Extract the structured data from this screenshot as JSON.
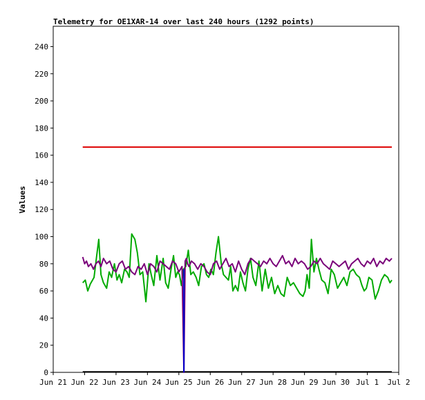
{
  "chart_data": {
    "type": "line",
    "title": "Telemetry for OE1XAR-14 over last 240 hours (1292 points)",
    "xlabel": "",
    "ylabel": "Values",
    "ylim": [
      0,
      255
    ],
    "xlim": [
      0,
      11
    ],
    "yticks": [
      0,
      20,
      40,
      60,
      80,
      100,
      120,
      140,
      160,
      180,
      200,
      220,
      240
    ],
    "xticks": [
      {
        "pos": 0,
        "label": "Jun 21"
      },
      {
        "pos": 1,
        "label": "Jun 22"
      },
      {
        "pos": 2,
        "label": "Jun 23"
      },
      {
        "pos": 3,
        "label": "Jun 24"
      },
      {
        "pos": 4,
        "label": "Jun 25"
      },
      {
        "pos": 5,
        "label": "Jun 26"
      },
      {
        "pos": 6,
        "label": "Jun 27"
      },
      {
        "pos": 7,
        "label": "Jun 28"
      },
      {
        "pos": 8,
        "label": "Jun 29"
      },
      {
        "pos": 9,
        "label": "Jun 30"
      },
      {
        "pos": 10,
        "label": "Jul 1"
      },
      {
        "pos": 11,
        "label": "Jul 2"
      }
    ],
    "grid": false,
    "legend": "none",
    "series": [
      {
        "color": "#dd0000",
        "x": [
          0.94,
          10.78
        ],
        "y": [
          166,
          166
        ]
      },
      {
        "color": "#00aa00",
        "x": [
          0.94,
          1.02,
          1.1,
          1.18,
          1.3,
          1.38,
          1.45,
          1.52,
          1.6,
          1.7,
          1.78,
          1.86,
          1.95,
          2.03,
          2.1,
          2.18,
          2.27,
          2.35,
          2.42,
          2.5,
          2.6,
          2.68,
          2.76,
          2.85,
          2.95,
          3.05,
          3.12,
          3.2,
          3.3,
          3.4,
          3.5,
          3.58,
          3.66,
          3.75,
          3.83,
          3.9,
          3.96,
          4.02,
          4.08,
          4.15,
          4.22,
          4.3,
          4.38,
          4.46,
          4.55,
          4.63,
          4.72,
          4.8,
          4.88,
          4.95,
          5.02,
          5.1,
          5.18,
          5.26,
          5.35,
          5.42,
          5.5,
          5.58,
          5.65,
          5.72,
          5.8,
          5.88,
          5.96,
          6.04,
          6.12,
          6.2,
          6.28,
          6.36,
          6.45,
          6.55,
          6.65,
          6.75,
          6.85,
          6.95,
          7.05,
          7.15,
          7.25,
          7.35,
          7.45,
          7.55,
          7.65,
          7.75,
          7.85,
          7.95,
          8.02,
          8.08,
          8.15,
          8.22,
          8.3,
          8.38,
          8.46,
          8.55,
          8.65,
          8.75,
          8.85,
          8.95,
          9.05,
          9.15,
          9.25,
          9.35,
          9.45,
          9.55,
          9.65,
          9.75,
          9.83,
          9.9,
          9.97,
          10.05,
          10.15,
          10.25,
          10.35,
          10.45,
          10.55,
          10.65,
          10.72,
          10.78
        ],
        "y": [
          66,
          68,
          60,
          65,
          70,
          85,
          98,
          72,
          66,
          62,
          74,
          70,
          80,
          68,
          72,
          66,
          76,
          74,
          70,
          102,
          98,
          88,
          72,
          74,
          52,
          80,
          72,
          64,
          86,
          68,
          84,
          66,
          62,
          76,
          86,
          70,
          74,
          72,
          64,
          76,
          78,
          90,
          72,
          74,
          70,
          64,
          78,
          80,
          72,
          70,
          76,
          72,
          88,
          100,
          80,
          72,
          70,
          68,
          78,
          60,
          64,
          60,
          74,
          66,
          60,
          76,
          84,
          70,
          64,
          82,
          60,
          76,
          62,
          70,
          58,
          64,
          58,
          56,
          70,
          64,
          66,
          62,
          58,
          56,
          60,
          72,
          62,
          98,
          74,
          84,
          76,
          68,
          66,
          58,
          76,
          72,
          62,
          66,
          70,
          64,
          74,
          76,
          72,
          70,
          64,
          60,
          62,
          70,
          68,
          54,
          60,
          68,
          72,
          70,
          66,
          68
        ]
      },
      {
        "color": "#7a007a",
        "x": [
          0.94,
          1.0,
          1.06,
          1.12,
          1.2,
          1.28,
          1.36,
          1.44,
          1.52,
          1.6,
          1.7,
          1.8,
          1.9,
          2.0,
          2.1,
          2.2,
          2.3,
          2.4,
          2.5,
          2.6,
          2.7,
          2.8,
          2.9,
          3.0,
          3.1,
          3.2,
          3.3,
          3.4,
          3.5,
          3.6,
          3.7,
          3.8,
          3.9,
          4.0,
          4.1,
          4.16,
          4.2,
          4.24,
          4.28,
          4.32,
          4.4,
          4.5,
          4.6,
          4.7,
          4.8,
          4.9,
          5.0,
          5.1,
          5.2,
          5.3,
          5.4,
          5.5,
          5.6,
          5.7,
          5.8,
          5.9,
          6.0,
          6.1,
          6.2,
          6.3,
          6.4,
          6.5,
          6.6,
          6.7,
          6.8,
          6.9,
          7.0,
          7.1,
          7.2,
          7.3,
          7.4,
          7.5,
          7.6,
          7.7,
          7.8,
          7.9,
          8.0,
          8.1,
          8.2,
          8.3,
          8.4,
          8.5,
          8.6,
          8.7,
          8.8,
          8.9,
          9.0,
          9.1,
          9.2,
          9.3,
          9.4,
          9.5,
          9.6,
          9.7,
          9.8,
          9.9,
          10.0,
          10.1,
          10.2,
          10.3,
          10.4,
          10.5,
          10.6,
          10.7,
          10.78
        ],
        "y": [
          85,
          80,
          82,
          78,
          80,
          76,
          80,
          82,
          78,
          84,
          80,
          82,
          76,
          74,
          80,
          82,
          76,
          78,
          74,
          72,
          78,
          76,
          80,
          72,
          80,
          78,
          74,
          82,
          80,
          78,
          76,
          82,
          80,
          74,
          78,
          0,
          82,
          84,
          80,
          78,
          82,
          80,
          76,
          80,
          78,
          74,
          72,
          80,
          82,
          76,
          80,
          84,
          78,
          80,
          74,
          82,
          76,
          72,
          80,
          84,
          82,
          80,
          78,
          82,
          80,
          84,
          80,
          78,
          82,
          86,
          80,
          82,
          78,
          84,
          80,
          82,
          80,
          76,
          78,
          82,
          80,
          84,
          80,
          78,
          76,
          82,
          80,
          78,
          80,
          82,
          76,
          80,
          82,
          84,
          80,
          78,
          82,
          80,
          84,
          78,
          82,
          80,
          84,
          82,
          84
        ]
      },
      {
        "color": "#0000cc",
        "x": [
          4.16,
          4.16
        ],
        "y": [
          0,
          76
        ]
      }
    ]
  }
}
